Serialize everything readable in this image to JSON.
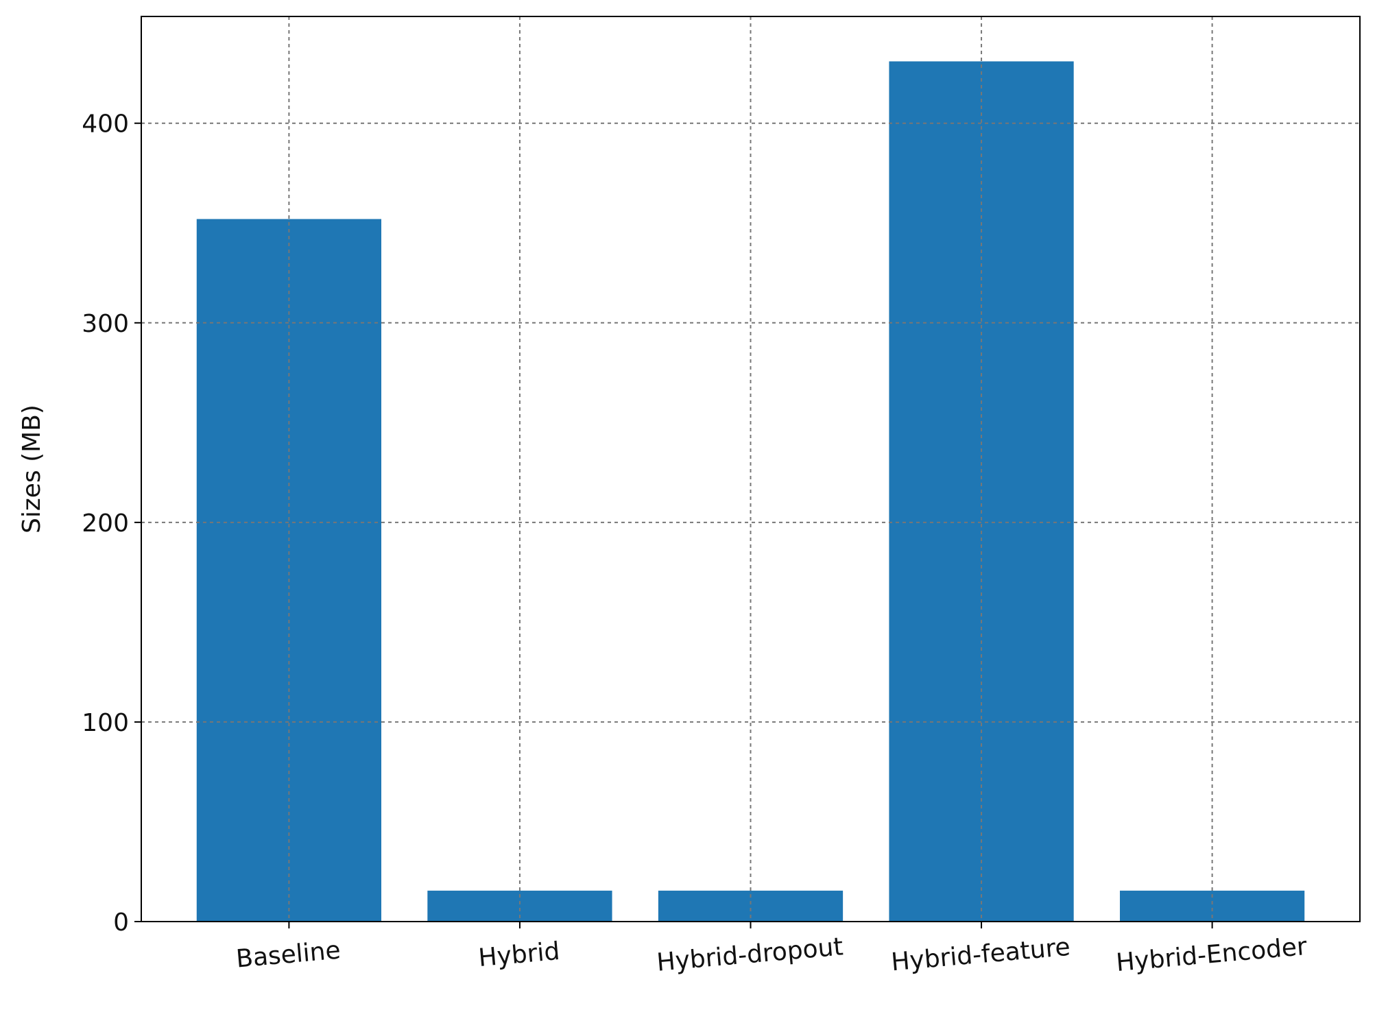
{
  "chart_data": {
    "type": "bar",
    "y_label": "Sizes (MB)",
    "categories": [
      "Baseline",
      "Hybrid",
      "Hybrid-dropout",
      "Hybrid-feature",
      "Hybrid-Encoder"
    ],
    "values": [
      352,
      15.5,
      15.5,
      431,
      15.5
    ],
    "color": "#1f77b4",
    "ylim": [
      0,
      453.5
    ],
    "yticks": [
      0,
      100,
      200,
      300,
      400
    ],
    "grid": true
  }
}
